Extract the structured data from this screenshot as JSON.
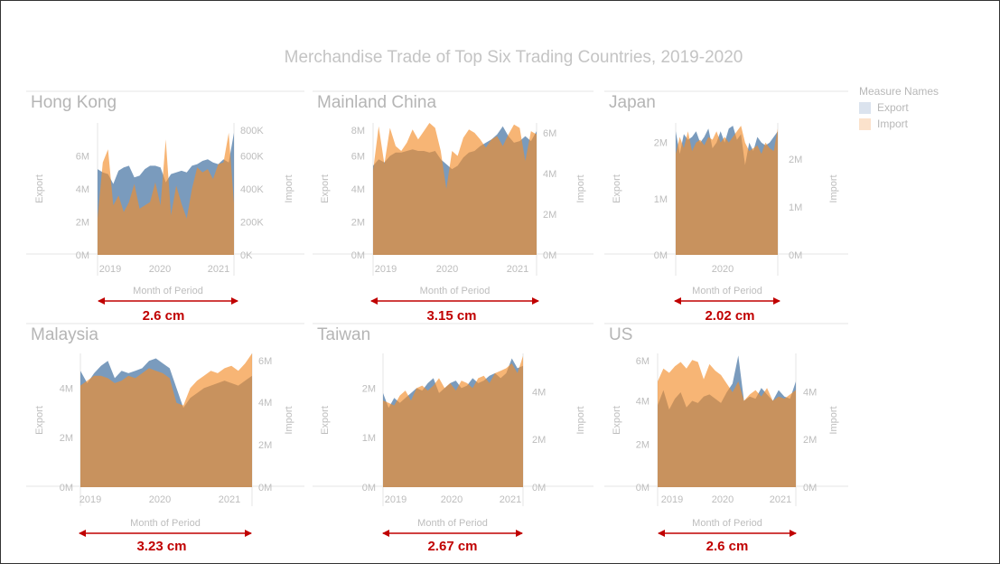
{
  "title": "Merchandise Trade of Top Six Trading Countries, 2019-2020",
  "legend": {
    "title": "Measure Names",
    "items": [
      {
        "label": "Export",
        "color": "#dbe3ee"
      },
      {
        "label": "Import",
        "color": "#fbe2cc"
      }
    ]
  },
  "colors": {
    "export_fill": "#4e79a7",
    "import_fill": "#f28e2b",
    "overlap_fill": "#c28b5e",
    "annotation": "#c00000",
    "grid": "#e6e6e6",
    "text": "#bdbdbd"
  },
  "x_axis_label": "Month of Period",
  "chart_data": [
    {
      "type": "area",
      "title": "Hong Kong",
      "xlabel": "Month of Period",
      "ylabel_left": "Export",
      "ylabel_right": "Import",
      "x_ticks": [
        "2019",
        "2020",
        "2021"
      ],
      "ylim_left": [
        0,
        8000000
      ],
      "y_ticks_left": [
        "0M",
        "2M",
        "4M",
        "6M"
      ],
      "ylim_right": [
        0,
        800000
      ],
      "y_ticks_right": [
        "0K",
        "200K",
        "400K",
        "600K",
        "800K"
      ],
      "series": [
        {
          "name": "Export",
          "values": [
            5.2,
            5.0,
            4.9,
            4.3,
            5.1,
            5.3,
            5.4,
            4.7,
            4.8,
            5.2,
            5.4,
            5.4,
            5.3,
            4.4,
            4.9,
            5.0,
            5.1,
            5.0,
            5.4,
            5.5,
            5.7,
            5.8,
            5.6,
            5.5,
            5.8,
            5.6,
            7.4
          ]
        },
        {
          "name": "Import",
          "values": [
            2.2,
            5.6,
            6.4,
            3.0,
            3.6,
            2.6,
            3.2,
            4.3,
            2.8,
            3.0,
            3.2,
            4.4,
            3.0,
            7.0,
            2.4,
            4.2,
            3.1,
            2.2,
            4.0,
            5.3,
            5.0,
            5.2,
            4.6,
            5.5,
            5.6,
            7.4,
            3.1
          ]
        }
      ],
      "annotation": "2.6 cm"
    },
    {
      "type": "area",
      "title": "Mainland China",
      "xlabel": "Month of Period",
      "ylabel_left": "Export",
      "ylabel_right": "Import",
      "x_ticks": [
        "2019",
        "2020",
        "2021"
      ],
      "ylim_left": [
        0,
        8000000
      ],
      "y_ticks_left": [
        "0M",
        "2M",
        "4M",
        "6M",
        "8M"
      ],
      "ylim_right": [
        0,
        6500000
      ],
      "y_ticks_right": [
        "0M",
        "2M",
        "4M",
        "6M"
      ],
      "series": [
        {
          "name": "Export",
          "values": [
            5.4,
            5.8,
            5.6,
            6.0,
            6.2,
            6.2,
            6.3,
            6.4,
            6.3,
            6.3,
            6.2,
            6.3,
            5.8,
            5.5,
            5.2,
            5.4,
            5.9,
            6.2,
            6.3,
            6.6,
            6.8,
            7.0,
            7.3,
            7.8,
            7.2,
            6.8,
            6.9,
            7.2,
            6.9,
            7.5
          ]
        },
        {
          "name": "Import",
          "values": [
            5.1,
            7.8,
            5.5,
            7.7,
            6.6,
            6.3,
            6.8,
            7.6,
            7.0,
            7.5,
            8.0,
            7.7,
            6.3,
            4.0,
            6.3,
            6.0,
            7.1,
            7.6,
            7.4,
            7.0,
            6.5,
            7.0,
            7.2,
            6.6,
            7.3,
            7.9,
            7.7,
            5.7,
            7.5,
            7.3
          ]
        }
      ],
      "annotation": "3.15 cm"
    },
    {
      "type": "area",
      "title": "Japan",
      "xlabel": "Month of Period",
      "ylabel_left": "Export",
      "ylabel_right": "Import",
      "x_ticks": [
        "2020"
      ],
      "ylim_left": [
        0,
        2350000
      ],
      "y_ticks_left": [
        "0M",
        "1M",
        "2M"
      ],
      "ylim_right": [
        0,
        2750000
      ],
      "y_ticks_right": [
        "0M",
        "1M",
        "2M"
      ],
      "series": [
        {
          "name": "Export",
          "values": [
            2.2,
            1.8,
            2.15,
            2.05,
            2.1,
            2.2,
            2.0,
            2.1,
            2.25,
            1.9,
            2.0,
            2.2,
            2.0,
            2.25,
            2.3,
            2.05,
            2.15,
            1.6,
            2.0,
            1.85,
            2.1,
            2.0,
            1.95,
            2.0,
            2.1,
            2.2
          ]
        },
        {
          "name": "Import",
          "values": [
            1.8,
            2.1,
            1.9,
            2.2,
            1.85,
            2.0,
            2.05,
            1.95,
            2.1,
            2.05,
            2.2,
            2.0,
            2.1,
            2.0,
            2.1,
            2.2,
            2.3,
            2.0,
            1.85,
            1.9,
            1.95,
            1.8,
            2.0,
            1.9,
            1.85,
            2.25
          ]
        }
      ],
      "annotation": "2.02 cm"
    },
    {
      "type": "area",
      "title": "Malaysia",
      "xlabel": "Month of Period",
      "ylabel_left": "Export",
      "ylabel_right": "Import",
      "x_ticks": [
        "2019",
        "2020",
        "2021"
      ],
      "ylim_left": [
        0,
        5400000
      ],
      "y_ticks_left": [
        "0M",
        "2M",
        "4M"
      ],
      "ylim_right": [
        0,
        6300000
      ],
      "y_ticks_right": [
        "0M",
        "2M",
        "4M",
        "6M"
      ],
      "series": [
        {
          "name": "Export",
          "values": [
            4.7,
            4.2,
            4.6,
            4.9,
            5.1,
            4.4,
            4.7,
            4.6,
            4.7,
            4.8,
            5.1,
            5.2,
            5.0,
            4.8,
            4.0,
            3.2,
            3.6,
            3.8,
            4.0,
            4.1,
            4.2,
            4.3,
            4.2,
            4.1,
            4.3,
            4.5
          ]
        },
        {
          "name": "Import",
          "values": [
            4.1,
            4.3,
            4.5,
            4.5,
            4.4,
            4.2,
            4.3,
            4.5,
            4.4,
            4.6,
            4.8,
            4.7,
            4.6,
            4.4,
            3.4,
            3.3,
            4.0,
            4.3,
            4.5,
            4.7,
            4.6,
            4.8,
            4.9,
            4.7,
            5.0,
            5.4
          ]
        }
      ],
      "annotation": "3.23 cm"
    },
    {
      "type": "area",
      "title": "Taiwan",
      "xlabel": "Month of Period",
      "ylabel_left": "Export",
      "ylabel_right": "Import",
      "x_ticks": [
        "2019",
        "2020",
        "2021"
      ],
      "ylim_left": [
        0,
        2700000
      ],
      "y_ticks_left": [
        "0M",
        "1M",
        "2M"
      ],
      "ylim_right": [
        0,
        5600000
      ],
      "y_ticks_right": [
        "0M",
        "2M",
        "4M"
      ],
      "series": [
        {
          "name": "Export",
          "values": [
            1.9,
            1.6,
            1.8,
            1.7,
            1.8,
            1.9,
            2.0,
            1.95,
            2.1,
            2.2,
            1.9,
            2.0,
            2.1,
            2.15,
            2.0,
            2.05,
            2.2,
            2.1,
            2.15,
            2.25,
            2.3,
            2.2,
            2.3,
            2.6,
            2.4,
            2.45
          ]
        },
        {
          "name": "Import",
          "values": [
            1.75,
            1.7,
            1.65,
            1.85,
            1.95,
            1.75,
            2.0,
            2.05,
            1.95,
            2.05,
            2.2,
            2.0,
            2.1,
            1.95,
            2.15,
            2.1,
            2.0,
            2.2,
            2.25,
            2.1,
            2.3,
            2.35,
            2.4,
            2.5,
            2.3,
            2.65
          ]
        }
      ],
      "annotation": "2.67 cm"
    },
    {
      "type": "area",
      "title": "US",
      "xlabel": "Month of Period",
      "ylabel_left": "Export",
      "ylabel_right": "Import",
      "x_ticks": [
        "2019",
        "2020",
        "2021"
      ],
      "ylim_left": [
        0,
        6200000
      ],
      "y_ticks_left": [
        "0M",
        "2M",
        "4M",
        "6M"
      ],
      "ylim_right": [
        0,
        5600000
      ],
      "y_ticks_right": [
        "0M",
        "2M",
        "4M"
      ],
      "series": [
        {
          "name": "Export",
          "values": [
            3.8,
            4.5,
            3.6,
            4.1,
            4.4,
            3.7,
            4.0,
            3.9,
            4.2,
            4.3,
            4.1,
            3.9,
            4.4,
            4.8,
            6.1,
            4.0,
            4.2,
            4.1,
            4.6,
            4.3,
            4.0,
            4.5,
            4.2,
            4.1,
            4.9
          ]
        },
        {
          "name": "Import",
          "values": [
            4.9,
            5.5,
            5.3,
            5.6,
            5.8,
            5.5,
            5.9,
            5.8,
            5.0,
            5.7,
            5.4,
            5.2,
            4.8,
            4.4,
            4.9,
            4.0,
            4.3,
            4.5,
            4.2,
            4.6,
            4.0,
            4.2,
            4.1,
            4.3,
            4.5
          ]
        }
      ],
      "annotation": "2.6 cm"
    }
  ]
}
